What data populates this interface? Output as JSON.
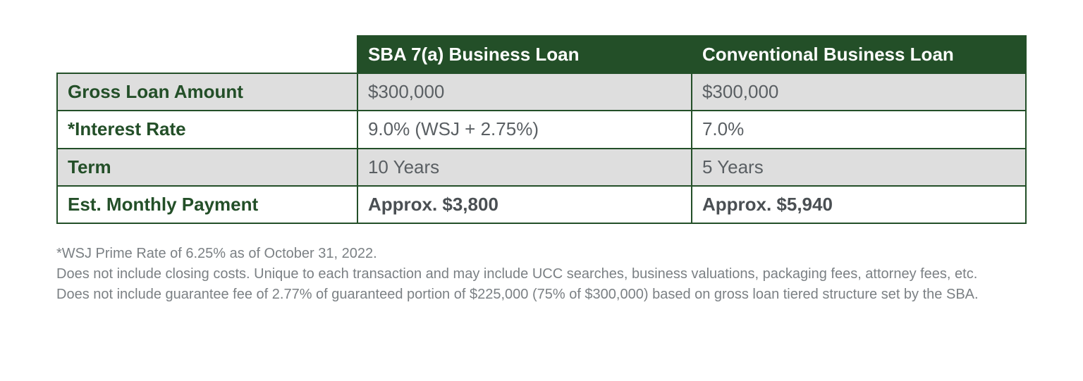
{
  "table": {
    "type": "table",
    "background_color": "#ffffff",
    "border_color": "#234f28",
    "header_bg": "#234f28",
    "header_text_color": "#ffffff",
    "row_label_color": "#234f28",
    "data_text_color": "#5a5f63",
    "shaded_bg": "#dedede",
    "plain_bg": "#ffffff",
    "header_fontsize": 26,
    "cell_fontsize": 26,
    "column_widths_pct": [
      31,
      34.5,
      34.5
    ],
    "columns": {
      "blank": "",
      "sba": "SBA 7(a) Business Loan",
      "conventional": "Conventional Business Loan"
    },
    "rows": [
      {
        "label": "Gross Loan Amount",
        "sba": "$300,000",
        "conventional": "$300,000",
        "shaded": true,
        "bold_data": false
      },
      {
        "label": "*Interest Rate",
        "sba": "9.0% (WSJ + 2.75%)",
        "conventional": "7.0%",
        "shaded": false,
        "bold_data": false
      },
      {
        "label": "Term",
        "sba": "10 Years",
        "conventional": "5 Years",
        "shaded": true,
        "bold_data": false
      },
      {
        "label": "Est. Monthly Payment",
        "sba": "Approx. $3,800",
        "conventional": "Approx. $5,940",
        "shaded": false,
        "bold_data": true
      }
    ]
  },
  "footnotes": {
    "color": "#7b8084",
    "fontsize": 20,
    "lines": {
      "l1": "*WSJ Prime Rate of 6.25% as of October 31, 2022.",
      "l2": "Does not include closing costs. Unique to each transaction and may include UCC searches, business valuations, packaging fees, attorney fees, etc.",
      "l3": "Does not include guarantee fee of 2.77% of guaranteed portion of $225,000 (75% of $300,000) based on gross loan tiered structure set by the SBA."
    }
  }
}
